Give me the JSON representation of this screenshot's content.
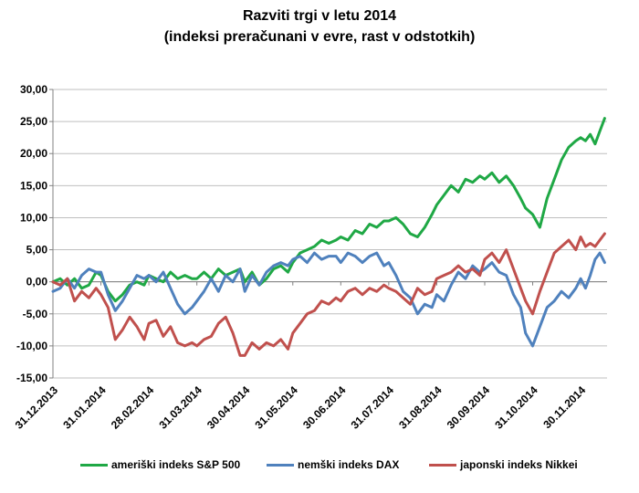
{
  "chart_data": {
    "type": "line",
    "title": "Razviti trgi v letu 2014",
    "subtitle": "(indeksi preračunani v evre, rast v odstotkih)",
    "xlabel": "",
    "ylabel": "",
    "ylim": [
      -15,
      30
    ],
    "yticks": [
      "30,00",
      "25,00",
      "20,00",
      "15,00",
      "10,00",
      "5,00",
      "0,00",
      "-5,00",
      "-10,00",
      "-15,00"
    ],
    "xticks": [
      "31.12.2013",
      "31.01.2014",
      "28.02.2014",
      "31.03.2014",
      "30.04.2014",
      "31.05.2014",
      "30.06.2014",
      "31.07.2014",
      "31.08.2014",
      "30.09.2014",
      "31.10.2014",
      "30.11.2014"
    ],
    "grid": "horizontal",
    "legend_position": "bottom",
    "x_unit": "month index (0 = 31.12.2013, 11 = 30.11.2014)",
    "series": [
      {
        "name": "ameriški indeks S&P 500",
        "color": "#1fa845",
        "x": [
          0,
          0.15,
          0.3,
          0.45,
          0.6,
          0.75,
          0.9,
          1.0,
          1.15,
          1.3,
          1.45,
          1.6,
          1.75,
          1.9,
          2.0,
          2.15,
          2.3,
          2.45,
          2.6,
          2.75,
          2.9,
          3.0,
          3.15,
          3.3,
          3.45,
          3.6,
          3.75,
          3.9,
          4.0,
          4.15,
          4.3,
          4.45,
          4.6,
          4.75,
          4.9,
          5.0,
          5.15,
          5.3,
          5.45,
          5.6,
          5.75,
          5.9,
          6.0,
          6.15,
          6.3,
          6.45,
          6.6,
          6.75,
          6.9,
          7.0,
          7.15,
          7.3,
          7.45,
          7.6,
          7.75,
          7.9,
          8.0,
          8.15,
          8.3,
          8.45,
          8.6,
          8.75,
          8.9,
          9.0,
          9.15,
          9.3,
          9.45,
          9.6,
          9.75,
          9.85,
          10.0,
          10.15,
          10.3,
          10.45,
          10.6,
          10.75,
          10.9,
          11.0,
          11.1,
          11.2,
          11.3,
          11.4,
          11.5
        ],
        "values": [
          0,
          0.5,
          -0.5,
          0.5,
          -1.0,
          -0.5,
          1.5,
          1.0,
          -1.5,
          -3.0,
          -2.0,
          -0.5,
          0,
          -0.5,
          1.0,
          0.5,
          0,
          1.5,
          0.5,
          1.0,
          0.5,
          0.5,
          1.5,
          0.5,
          2.0,
          1.0,
          1.5,
          2.0,
          0,
          1.5,
          -0.5,
          0.5,
          2.0,
          2.5,
          1.5,
          3.0,
          4.5,
          5.0,
          5.5,
          6.5,
          6.0,
          6.5,
          7.0,
          6.5,
          8.0,
          7.5,
          9.0,
          8.5,
          9.5,
          9.5,
          10.0,
          9.0,
          7.5,
          7.0,
          8.5,
          10.5,
          12.0,
          13.5,
          15.0,
          14.0,
          16.0,
          15.5,
          16.5,
          16.0,
          17.0,
          15.5,
          16.5,
          15.0,
          13.0,
          11.5,
          10.5,
          8.5,
          13.0,
          16.0,
          19.0,
          21.0,
          22.0,
          22.5,
          22.0,
          23.0,
          21.5,
          23.5,
          25.5
        ]
      },
      {
        "name": "nemški indeks DAX",
        "color": "#4f81bd",
        "x": [
          0,
          0.15,
          0.3,
          0.45,
          0.6,
          0.75,
          0.9,
          1.0,
          1.15,
          1.3,
          1.45,
          1.6,
          1.75,
          1.9,
          2.0,
          2.15,
          2.3,
          2.45,
          2.6,
          2.75,
          2.9,
          3.0,
          3.15,
          3.3,
          3.45,
          3.6,
          3.75,
          3.9,
          4.0,
          4.15,
          4.3,
          4.45,
          4.6,
          4.75,
          4.9,
          5.0,
          5.15,
          5.3,
          5.45,
          5.6,
          5.75,
          5.9,
          6.0,
          6.15,
          6.3,
          6.45,
          6.6,
          6.75,
          6.9,
          7.0,
          7.15,
          7.3,
          7.45,
          7.6,
          7.75,
          7.9,
          8.0,
          8.15,
          8.3,
          8.45,
          8.6,
          8.75,
          8.9,
          9.0,
          9.15,
          9.3,
          9.45,
          9.6,
          9.75,
          9.85,
          10.0,
          10.15,
          10.3,
          10.45,
          10.6,
          10.75,
          10.9,
          11.0,
          11.1,
          11.2,
          11.3,
          11.4,
          11.5
        ],
        "values": [
          -1.5,
          -1.0,
          0.5,
          -1.0,
          1.0,
          2.0,
          1.5,
          1.5,
          -2.0,
          -4.5,
          -3.0,
          -1.0,
          1.0,
          0.5,
          1.0,
          0,
          1.5,
          -1.0,
          -3.5,
          -5.0,
          -4.0,
          -3.0,
          -1.5,
          0.5,
          -1.5,
          1.0,
          0,
          2.0,
          -1.5,
          1.0,
          -0.5,
          1.5,
          2.5,
          3.0,
          2.5,
          3.5,
          4.0,
          3.0,
          4.5,
          3.5,
          4.0,
          4.0,
          3.0,
          4.5,
          4.0,
          3.0,
          4.0,
          4.5,
          2.5,
          3.0,
          1.0,
          -1.5,
          -2.5,
          -5.0,
          -3.5,
          -4.0,
          -2.0,
          -3.0,
          -0.5,
          1.5,
          0.5,
          2.5,
          1.5,
          2.0,
          3.0,
          1.5,
          1.0,
          -2.0,
          -4.0,
          -8.0,
          -10.0,
          -7.0,
          -4.0,
          -3.0,
          -1.5,
          -2.5,
          -1.0,
          0.5,
          -1.0,
          1.0,
          3.5,
          4.5,
          3.0
        ]
      },
      {
        "name": "japonski indeks Nikkei",
        "color": "#c0504d",
        "x": [
          0,
          0.15,
          0.3,
          0.45,
          0.6,
          0.75,
          0.9,
          1.0,
          1.15,
          1.3,
          1.45,
          1.6,
          1.75,
          1.9,
          2.0,
          2.15,
          2.3,
          2.45,
          2.6,
          2.75,
          2.9,
          3.0,
          3.15,
          3.3,
          3.45,
          3.6,
          3.75,
          3.9,
          4.0,
          4.15,
          4.3,
          4.45,
          4.6,
          4.75,
          4.9,
          5.0,
          5.15,
          5.3,
          5.45,
          5.6,
          5.75,
          5.9,
          6.0,
          6.15,
          6.3,
          6.45,
          6.6,
          6.75,
          6.9,
          7.0,
          7.15,
          7.3,
          7.45,
          7.6,
          7.75,
          7.9,
          8.0,
          8.15,
          8.3,
          8.45,
          8.6,
          8.75,
          8.9,
          9.0,
          9.15,
          9.3,
          9.45,
          9.6,
          9.75,
          9.85,
          10.0,
          10.15,
          10.3,
          10.45,
          10.6,
          10.75,
          10.9,
          11.0,
          11.1,
          11.2,
          11.3,
          11.4,
          11.5
        ],
        "values": [
          0,
          -0.5,
          0.5,
          -3.0,
          -1.5,
          -2.5,
          -1.0,
          -2.0,
          -4.0,
          -9.0,
          -7.5,
          -5.5,
          -7.0,
          -9.0,
          -6.5,
          -6.0,
          -8.5,
          -7.0,
          -9.5,
          -10.0,
          -9.5,
          -10.0,
          -9.0,
          -8.5,
          -6.5,
          -5.5,
          -8.0,
          -11.5,
          -11.5,
          -9.5,
          -10.5,
          -9.5,
          -10.0,
          -9.0,
          -10.5,
          -8.0,
          -6.5,
          -5.0,
          -4.5,
          -3.0,
          -3.5,
          -2.5,
          -3.0,
          -1.5,
          -1.0,
          -2.0,
          -1.0,
          -1.5,
          -0.5,
          -1.0,
          -1.5,
          -2.5,
          -3.5,
          -1.0,
          -2.0,
          -1.5,
          0.5,
          1.0,
          1.5,
          2.5,
          1.5,
          2.0,
          1.0,
          3.5,
          4.5,
          3.0,
          5.0,
          2.0,
          -1.0,
          -3.0,
          -5.0,
          -1.5,
          1.5,
          4.5,
          5.5,
          6.5,
          5.0,
          7.0,
          5.5,
          6.0,
          5.5,
          6.5,
          7.5
        ]
      }
    ]
  }
}
